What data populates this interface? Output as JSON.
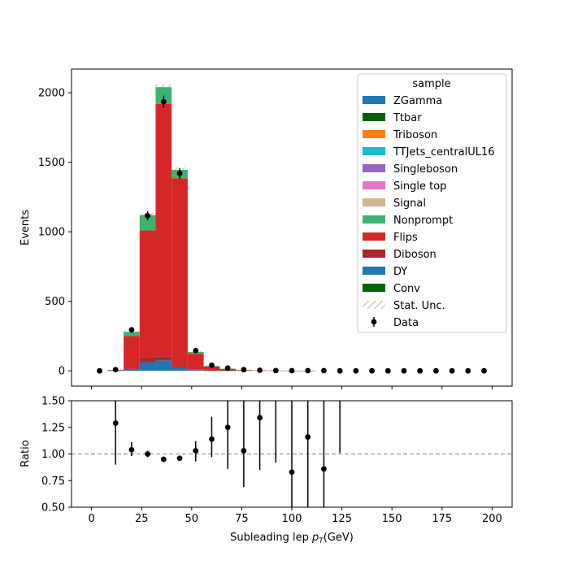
{
  "chart_data": {
    "type": "bar",
    "stacked": true,
    "bin_width": 8,
    "bin_edges": [
      0,
      8,
      16,
      24,
      32,
      40,
      48,
      56,
      64,
      72,
      80,
      88,
      96,
      104,
      112,
      120,
      128,
      136,
      144,
      152,
      160,
      168,
      176,
      184,
      192,
      200
    ],
    "xlabel": "Subleading lep",
    "xlabel_unit": "(GeV)",
    "ylabel": "Events",
    "ratio_ylabel": "Ratio",
    "xlim": [
      -10,
      210
    ],
    "ylim": [
      -110,
      2170
    ],
    "ratio_ylim": [
      0.5,
      1.5
    ],
    "xticks": [
      0,
      25,
      50,
      75,
      100,
      125,
      150,
      175,
      200
    ],
    "yticks": [
      0,
      500,
      1000,
      1500,
      2000
    ],
    "ratio_yticks": [
      "0.50",
      "0.75",
      "1.00",
      "1.25",
      "1.50"
    ],
    "grid": false,
    "legend_title": "sample",
    "legend_position": "top-right",
    "legend": [
      {
        "label": "ZGamma",
        "color": "#1f77b4",
        "kind": "box"
      },
      {
        "label": "Ttbar",
        "color": "#006400",
        "kind": "box"
      },
      {
        "label": "Triboson",
        "color": "#ff7f0e",
        "kind": "box"
      },
      {
        "label": "TTJets_centralUL16",
        "color": "#17becf",
        "kind": "box"
      },
      {
        "label": "Singleboson",
        "color": "#9467bd",
        "kind": "box"
      },
      {
        "label": "Single top",
        "color": "#e377c2",
        "kind": "box"
      },
      {
        "label": "Signal",
        "color": "#d2b48c",
        "kind": "box"
      },
      {
        "label": "Nonprompt",
        "color": "#3cb371",
        "kind": "box"
      },
      {
        "label": "Flips",
        "color": "#d62728",
        "kind": "box"
      },
      {
        "label": "Diboson",
        "color": "#a52a2a",
        "kind": "box"
      },
      {
        "label": "DY",
        "color": "#1f77b4",
        "kind": "box"
      },
      {
        "label": "Conv",
        "color": "#006400",
        "kind": "box"
      },
      {
        "label": "Stat. Unc.",
        "color": "#888888",
        "kind": "hatch"
      },
      {
        "label": "Data",
        "color": "#000000",
        "kind": "point"
      }
    ],
    "series": [
      {
        "name": "DY",
        "color": "#1f77b4",
        "values": [
          0,
          2,
          10,
          60,
          75,
          20,
          5,
          2,
          1,
          0,
          0,
          0,
          0,
          0,
          0,
          0,
          0,
          0,
          0,
          0,
          0,
          0,
          0,
          0,
          0
        ]
      },
      {
        "name": "Diboson",
        "color": "#a52a2a",
        "values": [
          0,
          1,
          5,
          35,
          30,
          10,
          3,
          1,
          0,
          0,
          0,
          0,
          0,
          0,
          0,
          0,
          0,
          0,
          0,
          0,
          0,
          0,
          0,
          0,
          0
        ]
      },
      {
        "name": "Flips",
        "color": "#d62728",
        "values": [
          0,
          2,
          235,
          915,
          1815,
          1355,
          115,
          28,
          12,
          5,
          3,
          2,
          1,
          1,
          0,
          0,
          0,
          0,
          0,
          0,
          0,
          0,
          0,
          0,
          0
        ]
      },
      {
        "name": "Nonprompt",
        "color": "#3cb371",
        "values": [
          0,
          1,
          30,
          110,
          120,
          60,
          12,
          4,
          2,
          1,
          0,
          0,
          0,
          0,
          0,
          0,
          0,
          0,
          0,
          0,
          0,
          0,
          0,
          0,
          0
        ]
      }
    ],
    "totals": [
      0,
      6,
      280,
      1120,
      2040,
      1445,
      135,
      35,
      15,
      6,
      3,
      2,
      1,
      1,
      0,
      0,
      0,
      0,
      0,
      0,
      0,
      0,
      0,
      0,
      0
    ],
    "stat_unc": [
      0,
      2,
      8,
      15,
      20,
      18,
      6,
      3,
      2,
      1,
      1,
      1,
      0,
      0,
      0,
      0,
      0,
      0,
      0,
      0,
      0,
      0,
      0,
      0,
      0
    ],
    "data": {
      "x": [
        4,
        12,
        20,
        28,
        36,
        44,
        52,
        60,
        68,
        76,
        84,
        92,
        100,
        108,
        116,
        124,
        132,
        140,
        148,
        156,
        164,
        172,
        180,
        188,
        196
      ],
      "y": [
        0,
        8,
        295,
        1115,
        1935,
        1420,
        145,
        40,
        20,
        8,
        4,
        2,
        1,
        1,
        1,
        0,
        0,
        0,
        0,
        0,
        0,
        0,
        0,
        0,
        0
      ],
      "yerr": [
        0,
        3,
        17,
        33,
        44,
        38,
        12,
        6,
        4,
        3,
        2,
        1,
        1,
        1,
        1,
        0,
        0,
        0,
        0,
        0,
        0,
        0,
        0,
        0,
        0
      ]
    },
    "ratio": {
      "x": [
        12,
        20,
        28,
        36,
        44,
        52,
        60,
        68,
        76,
        84,
        92,
        100,
        108,
        116,
        124
      ],
      "y": [
        1.29,
        1.04,
        1.0,
        0.95,
        0.96,
        1.03,
        1.14,
        1.25,
        1.03,
        1.34,
        null,
        0.83,
        1.16,
        0.86,
        null
      ],
      "lo": [
        0.9,
        0.98,
        0.97,
        0.93,
        0.94,
        0.93,
        0.97,
        0.86,
        0.69,
        0.85,
        0.92,
        0.45,
        0.45,
        0.45,
        1.01
      ],
      "hi": [
        1.5,
        1.11,
        1.03,
        0.97,
        0.98,
        1.12,
        1.35,
        1.5,
        1.5,
        1.5,
        1.5,
        1.5,
        1.5,
        1.5,
        1.5
      ]
    },
    "ratio_reference": 1.0
  }
}
